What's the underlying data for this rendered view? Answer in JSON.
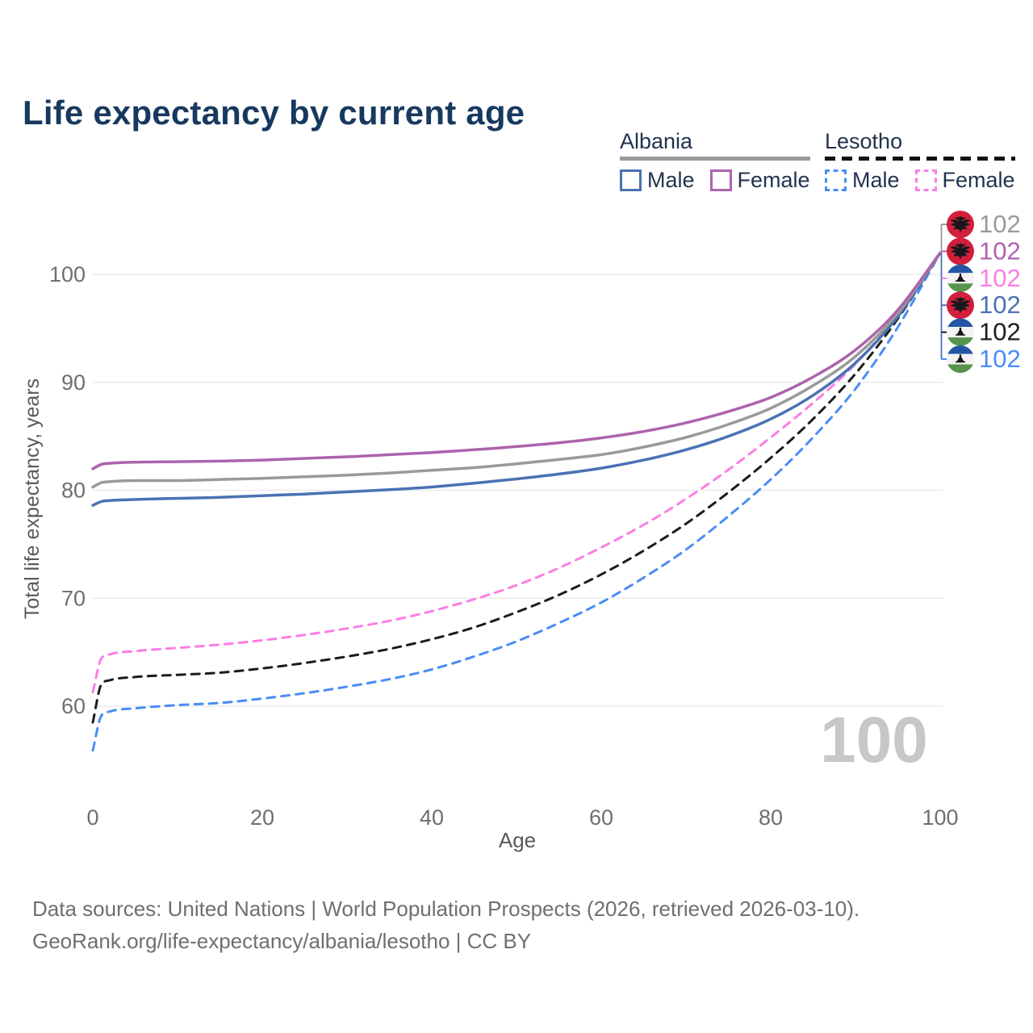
{
  "title": "Life expectancy by current age",
  "legend": {
    "groups": [
      {
        "name": "Albania",
        "line_style": "solid",
        "underline_color": "#9a9a9a",
        "items": [
          {
            "label": "Male",
            "color": "#4a72b4"
          },
          {
            "label": "Female",
            "color": "#ad63ad"
          }
        ]
      },
      {
        "name": "Lesotho",
        "line_style": "dashed",
        "underline_color": "#121212",
        "items": [
          {
            "label": "Male",
            "color": "#4a8cf7"
          },
          {
            "label": "Female",
            "color": "#fc7de4"
          }
        ]
      }
    ]
  },
  "footer": {
    "line1": "Data sources: United Nations | World Population Prospects (2026, retrieved 2026-03-10).",
    "line2": "GeoRank.org/life-expectancy/albania/lesotho | CC BY"
  },
  "chart_data": {
    "type": "line",
    "title": "Life expectancy by current age",
    "xlabel": "Age",
    "ylabel": "Total life expectancy, years",
    "x_ticks": [
      0,
      20,
      40,
      60,
      80,
      100
    ],
    "y_ticks": [
      60,
      70,
      80,
      90,
      100
    ],
    "xlim": [
      0,
      100
    ],
    "ylim": [
      55,
      103
    ],
    "grid": "horizontal",
    "legend_position": "top-right",
    "frame_counter": "100",
    "x": [
      0,
      1,
      2,
      5,
      10,
      15,
      20,
      25,
      30,
      35,
      40,
      45,
      50,
      55,
      60,
      65,
      70,
      75,
      80,
      85,
      90,
      95,
      100
    ],
    "series": [
      {
        "name": "Lesotho (all) Male",
        "country": "lesotho",
        "sex": "male",
        "color": "#4a8cf7",
        "dashed": true,
        "zorder": 1,
        "label_rank": 6,
        "end_value": "102",
        "values": [
          55.9,
          59.1,
          59.5,
          59.8,
          60.1,
          60.3,
          60.7,
          61.2,
          61.8,
          62.5,
          63.4,
          64.6,
          66.0,
          67.7,
          69.6,
          71.9,
          74.5,
          77.6,
          81.0,
          84.9,
          89.4,
          95.1,
          102
        ]
      },
      {
        "name": "Lesotho (all)",
        "country": "lesotho",
        "sex": "all",
        "color": "#1c1c1c",
        "dashed": true,
        "zorder": 2,
        "label_rank": 5,
        "end_value": "102",
        "values": [
          58.5,
          62.0,
          62.4,
          62.7,
          62.9,
          63.1,
          63.5,
          64.0,
          64.6,
          65.3,
          66.2,
          67.3,
          68.7,
          70.3,
          72.2,
          74.4,
          76.9,
          79.8,
          83.0,
          86.6,
          90.8,
          95.9,
          102
        ]
      },
      {
        "name": "Lesotho Female",
        "country": "lesotho",
        "sex": "female",
        "color": "#fc7de4",
        "dashed": true,
        "zorder": 3,
        "label_rank": 3,
        "end_value": "102",
        "values": [
          61.3,
          64.4,
          64.8,
          65.1,
          65.4,
          65.7,
          66.1,
          66.6,
          67.2,
          67.9,
          68.8,
          69.9,
          71.2,
          72.8,
          74.7,
          76.8,
          79.2,
          81.9,
          84.9,
          88.1,
          91.7,
          96.3,
          102
        ]
      },
      {
        "name": "Albania Male",
        "country": "albania",
        "sex": "male",
        "color": "#4a72b4",
        "dashed": false,
        "zorder": 4,
        "label_rank": 4,
        "end_value": "102",
        "values": [
          78.6,
          78.95,
          79.05,
          79.15,
          79.25,
          79.35,
          79.5,
          79.65,
          79.85,
          80.05,
          80.3,
          80.65,
          81.05,
          81.5,
          82.05,
          82.8,
          83.75,
          85.0,
          86.6,
          88.8,
          91.8,
          96.1,
          102
        ]
      },
      {
        "name": "Albania (all)",
        "country": "albania",
        "sex": "all",
        "color": "#9a9a9a",
        "dashed": false,
        "zorder": 5,
        "label_rank": 1,
        "end_value": "102",
        "values": [
          80.3,
          80.7,
          80.8,
          80.9,
          80.9,
          81.0,
          81.1,
          81.25,
          81.4,
          81.6,
          81.85,
          82.1,
          82.45,
          82.85,
          83.3,
          84.0,
          84.9,
          86.1,
          87.6,
          89.7,
          92.4,
          96.4,
          102
        ]
      },
      {
        "name": "Albania Female",
        "country": "albania",
        "sex": "female",
        "color": "#ad63ad",
        "dashed": false,
        "zorder": 6,
        "label_rank": 2,
        "end_value": "102",
        "values": [
          82.0,
          82.4,
          82.5,
          82.6,
          82.65,
          82.7,
          82.8,
          82.95,
          83.1,
          83.3,
          83.5,
          83.75,
          84.05,
          84.4,
          84.85,
          85.45,
          86.25,
          87.3,
          88.6,
          90.5,
          93.0,
          96.7,
          102
        ]
      }
    ]
  }
}
